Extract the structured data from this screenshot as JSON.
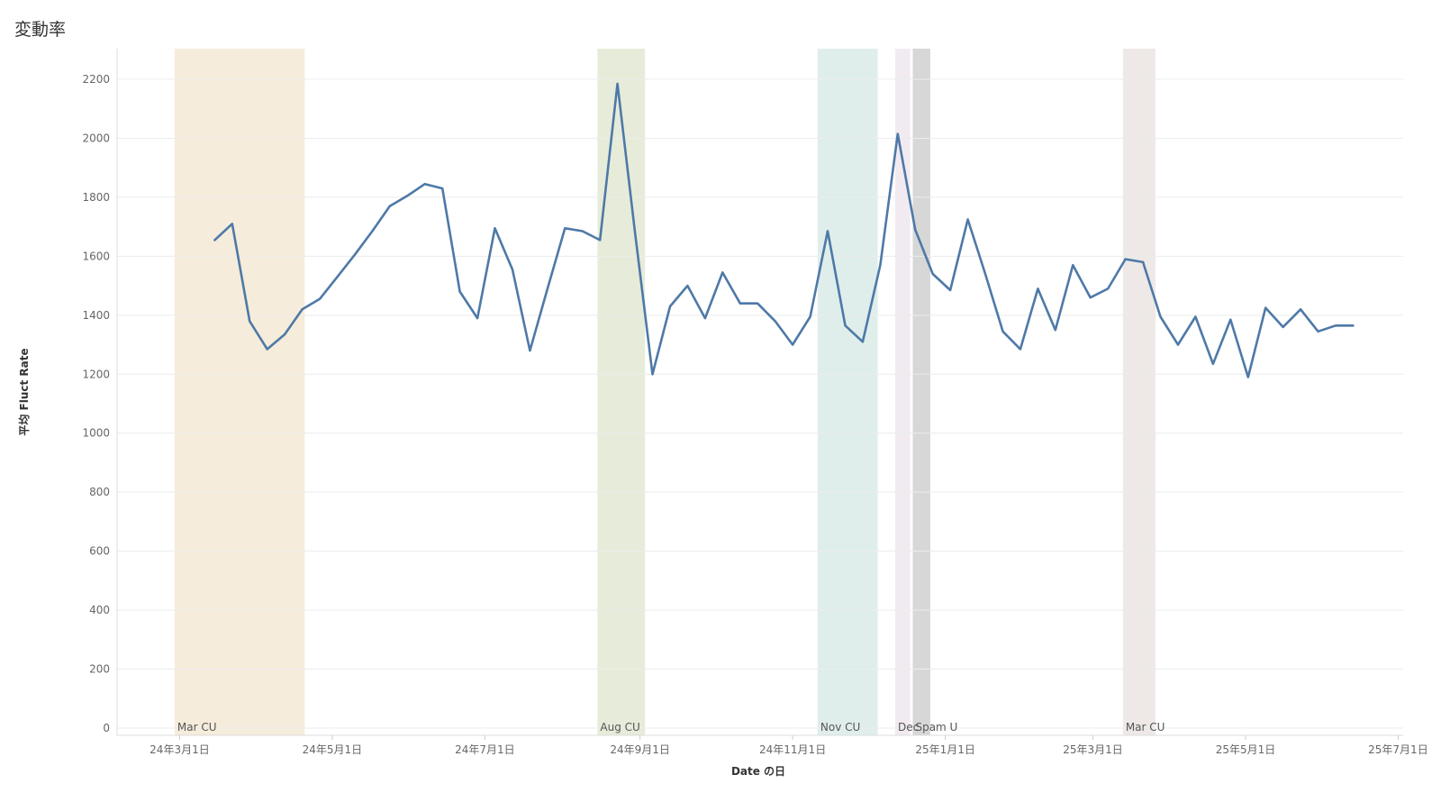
{
  "page": {
    "title": "変動率"
  },
  "chart_data": {
    "type": "line",
    "xlabel": "Date の日",
    "ylabel": "平均 Fluct Rate",
    "ylim": [
      0,
      2300
    ],
    "y_ticks": [
      0,
      200,
      400,
      600,
      800,
      1000,
      1200,
      1400,
      1600,
      1800,
      2000,
      2200
    ],
    "xlim": [
      "2024-02-05",
      "2025-07-03"
    ],
    "x_ticks": [
      {
        "date": "2024-03-01",
        "label": "24年3月1日"
      },
      {
        "date": "2024-05-01",
        "label": "24年5月1日"
      },
      {
        "date": "2024-07-01",
        "label": "24年7月1日"
      },
      {
        "date": "2024-09-01",
        "label": "24年9月1日"
      },
      {
        "date": "2024-11-01",
        "label": "24年11月1日"
      },
      {
        "date": "2025-01-01",
        "label": "25年1月1日"
      },
      {
        "date": "2025-03-01",
        "label": "25年3月1日"
      },
      {
        "date": "2025-05-01",
        "label": "25年5月1日"
      },
      {
        "date": "2025-07-01",
        "label": "25年7月1日"
      }
    ],
    "grid": true,
    "line_color": "#4e79a7",
    "bands": [
      {
        "label": "Mar CU",
        "start": "2024-02-28",
        "end": "2024-04-20",
        "color": "#f6ecdb"
      },
      {
        "label": "Aug CU",
        "start": "2024-08-15",
        "end": "2024-09-03",
        "color": "#e6ecd9"
      },
      {
        "label": "Nov CU",
        "start": "2024-11-11",
        "end": "2024-12-05",
        "color": "#dfeeeb"
      },
      {
        "label": "Dec",
        "start": "2024-12-12",
        "end": "2024-12-18",
        "color": "#f1ebf1"
      },
      {
        "label": "Spam U",
        "start": "2024-12-19",
        "end": "2024-12-26",
        "color": "#d7d7d7"
      },
      {
        "label": "Mar CU",
        "start": "2025-03-13",
        "end": "2025-03-26",
        "color": "#eee9e6"
      }
    ],
    "series": [
      {
        "x": [
          "2024-03-15",
          "2024-03-22",
          "2024-03-29",
          "2024-04-05",
          "2024-04-12",
          "2024-04-19",
          "2024-04-26",
          "2024-05-03",
          "2024-05-10",
          "2024-05-17",
          "2024-05-24",
          "2024-05-31",
          "2024-06-07",
          "2024-06-14",
          "2024-06-21",
          "2024-06-28",
          "2024-07-05",
          "2024-07-12",
          "2024-07-19",
          "2024-07-26",
          "2024-08-02",
          "2024-08-09",
          "2024-08-16",
          "2024-08-23",
          "2024-08-30",
          "2024-09-06",
          "2024-09-13",
          "2024-09-20",
          "2024-09-27",
          "2024-10-04",
          "2024-10-11",
          "2024-10-18",
          "2024-10-25",
          "2024-11-01",
          "2024-11-08",
          "2024-11-15",
          "2024-11-22",
          "2024-11-29",
          "2024-12-06",
          "2024-12-13",
          "2024-12-20",
          "2024-12-27",
          "2025-01-03",
          "2025-01-10",
          "2025-01-17",
          "2025-01-24",
          "2025-01-31",
          "2025-02-07",
          "2025-02-14",
          "2025-02-21",
          "2025-02-28",
          "2025-03-07",
          "2025-03-14",
          "2025-03-21",
          "2025-03-28",
          "2025-04-04",
          "2025-04-11",
          "2025-04-18",
          "2025-04-25",
          "2025-05-02",
          "2025-05-09",
          "2025-05-16",
          "2025-05-23",
          "2025-05-30",
          "2025-06-06",
          "2025-06-13"
        ],
        "y": [
          1655,
          1710,
          1380,
          1285,
          1335,
          1420,
          1455,
          1530,
          1605,
          1685,
          1770,
          1805,
          1845,
          1830,
          1480,
          1390,
          1695,
          1555,
          1280,
          1490,
          1695,
          1685,
          1655,
          2185,
          1680,
          1200,
          1430,
          1500,
          1390,
          1545,
          1440,
          1440,
          1380,
          1300,
          1395,
          1685,
          1365,
          1310,
          1570,
          2015,
          1690,
          1540,
          1485,
          1725,
          1540,
          1345,
          1285,
          1490,
          1350,
          1570,
          1460,
          1490,
          1590,
          1580,
          1395,
          1300,
          1395,
          1235,
          1385,
          1190,
          1425,
          1360,
          1420,
          1345,
          1365,
          1365
        ]
      }
    ]
  }
}
